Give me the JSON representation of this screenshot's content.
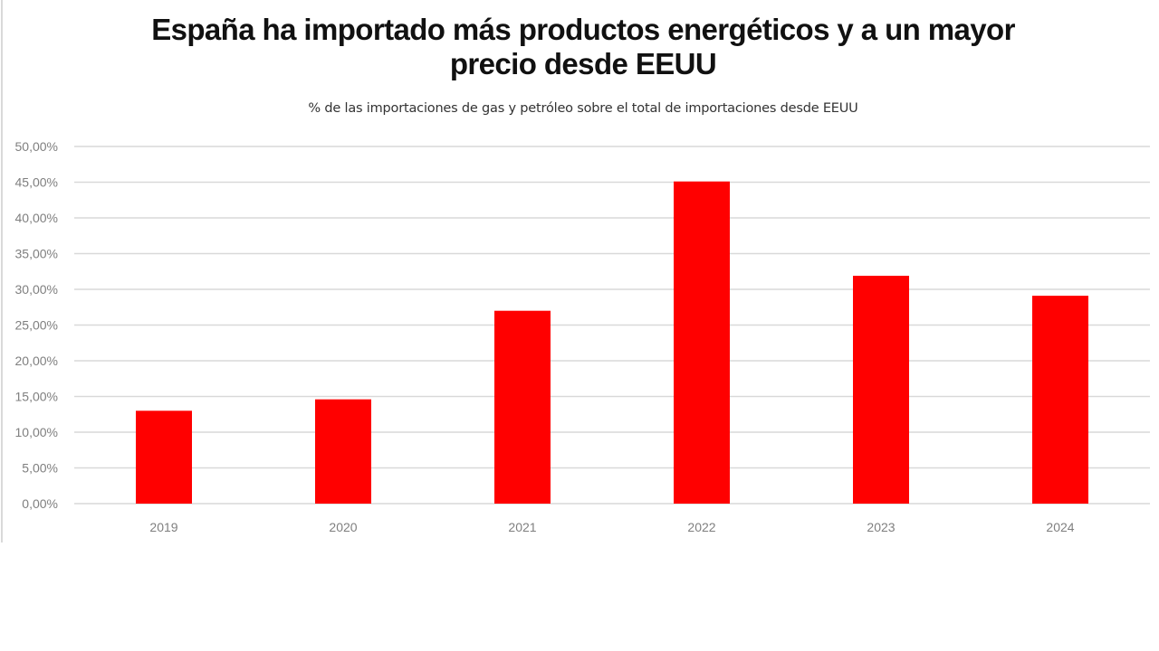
{
  "chart_data": {
    "type": "bar",
    "title": "España ha importado más productos energéticos y a un mayor precio desde EEUU",
    "title_lines": [
      "España ha importado más productos energéticos y a un mayor",
      "precio desde EEUU"
    ],
    "subtitle": "% de las importaciones de gas y petróleo sobre el total de importaciones desde EEUU",
    "xlabel": "",
    "ylabel": "",
    "categories": [
      "2019",
      "2020",
      "2021",
      "2022",
      "2023",
      "2024"
    ],
    "values": [
      13.0,
      14.6,
      27.0,
      45.1,
      31.9,
      29.1
    ],
    "unit": "%",
    "ylim": [
      0,
      50
    ],
    "yticks": [
      0,
      5,
      10,
      15,
      20,
      25,
      30,
      35,
      40,
      45,
      50
    ],
    "ytick_labels": [
      "0,00%",
      "5,00%",
      "10,00%",
      "15,00%",
      "20,00%",
      "25,00%",
      "30,00%",
      "35,00%",
      "40,00%",
      "45,00%",
      "50,00%"
    ],
    "grid": true,
    "legend": "none",
    "colors": {
      "bar": "#ff0000",
      "grid": "#d9d9d9",
      "tick_text": "#7f7f7f"
    }
  }
}
